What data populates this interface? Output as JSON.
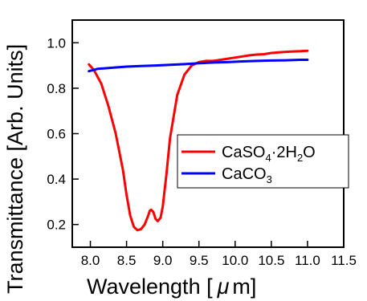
{
  "chart_data": {
    "type": "line",
    "title": "",
    "xlabel": "Wavelength [μm]",
    "ylabel": "Transmittance [Arb. Units]",
    "xlim": [
      7.75,
      11.5
    ],
    "ylim": [
      0.1,
      1.1
    ],
    "xticks": [
      "8.0",
      "8.5",
      "9.0",
      "9.5",
      "10.0",
      "10.5",
      "11.0",
      "11.5"
    ],
    "yticks": [
      "0.2",
      "0.4",
      "0.6",
      "0.8",
      "1.0"
    ],
    "grid": false,
    "legend_position": "center-right",
    "series": [
      {
        "name": "CaSO4·2H2O",
        "color": "#ff0000",
        "x": [
          7.98,
          8.05,
          8.15,
          8.25,
          8.35,
          8.45,
          8.5,
          8.55,
          8.6,
          8.65,
          8.7,
          8.75,
          8.8,
          8.82,
          8.84,
          8.87,
          8.9,
          8.93,
          8.97,
          9.0,
          9.05,
          9.1,
          9.2,
          9.3,
          9.4,
          9.5,
          9.6,
          9.7,
          9.8,
          9.9,
          10.0,
          10.1,
          10.2,
          10.3,
          10.4,
          10.5,
          10.6,
          10.7,
          10.8,
          10.9,
          11.0
        ],
        "y": [
          0.905,
          0.88,
          0.82,
          0.72,
          0.6,
          0.44,
          0.33,
          0.24,
          0.19,
          0.175,
          0.18,
          0.2,
          0.24,
          0.26,
          0.265,
          0.255,
          0.225,
          0.215,
          0.23,
          0.28,
          0.42,
          0.58,
          0.77,
          0.86,
          0.9,
          0.915,
          0.92,
          0.92,
          0.925,
          0.93,
          0.935,
          0.94,
          0.945,
          0.948,
          0.95,
          0.955,
          0.958,
          0.96,
          0.962,
          0.963,
          0.965
        ]
      },
      {
        "name": "CaCO3",
        "color": "#0000ff",
        "x": [
          7.98,
          8.1,
          8.3,
          8.5,
          8.7,
          8.9,
          9.1,
          9.3,
          9.5,
          9.7,
          9.9,
          10.1,
          10.3,
          10.5,
          10.7,
          10.9,
          11.0
        ],
        "y": [
          0.875,
          0.885,
          0.89,
          0.895,
          0.898,
          0.9,
          0.903,
          0.906,
          0.91,
          0.913,
          0.915,
          0.918,
          0.92,
          0.922,
          0.923,
          0.925,
          0.925
        ]
      }
    ]
  },
  "legend": {
    "items": [
      {
        "base": "CaSO",
        "sub1": "4",
        "mid": "·2H",
        "sub2": "2",
        "end": "O"
      },
      {
        "base": "CaCO",
        "sub1": "3",
        "mid": "",
        "sub2": "",
        "end": ""
      }
    ]
  },
  "labels": {
    "ylabel": "Transmittance [Arb. Units]",
    "xlabel_prefix": "Wavelength [",
    "xlabel_unit": "μ",
    "xlabel_suffix": "m]"
  }
}
